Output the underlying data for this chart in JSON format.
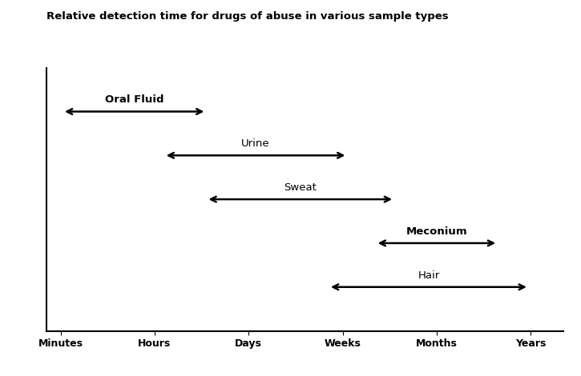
{
  "title": "Relative detection time for drugs of abuse in various sample types",
  "title_fontsize": 9.5,
  "title_fontweight": "bold",
  "background_color": "#ffffff",
  "x_ticks": [
    0,
    1,
    2,
    3,
    4,
    5
  ],
  "x_tick_labels": [
    "Minutes",
    "Hours",
    "Days",
    "Weeks",
    "Months",
    "Years"
  ],
  "x_tick_fontsize": 9,
  "x_tick_fontweight": "bold",
  "arrows": [
    {
      "label": "Oral Fluid",
      "x_start": 0.02,
      "x_end": 1.55,
      "y": 5,
      "label_bold": true
    },
    {
      "label": "Urine",
      "x_start": 1.1,
      "x_end": 3.05,
      "y": 4,
      "label_bold": false
    },
    {
      "label": "Sweat",
      "x_start": 1.55,
      "x_end": 3.55,
      "y": 3,
      "label_bold": false
    },
    {
      "label": "Meconium",
      "x_start": 3.35,
      "x_end": 4.65,
      "y": 2,
      "label_bold": true
    },
    {
      "label": "Hair",
      "x_start": 2.85,
      "x_end": 4.98,
      "y": 1,
      "label_bold": false
    }
  ],
  "arrow_linewidth": 1.8,
  "arrow_color": "#000000",
  "label_fontsize": 9.5,
  "ylim": [
    0,
    6
  ],
  "xlim": [
    -0.15,
    5.35
  ]
}
